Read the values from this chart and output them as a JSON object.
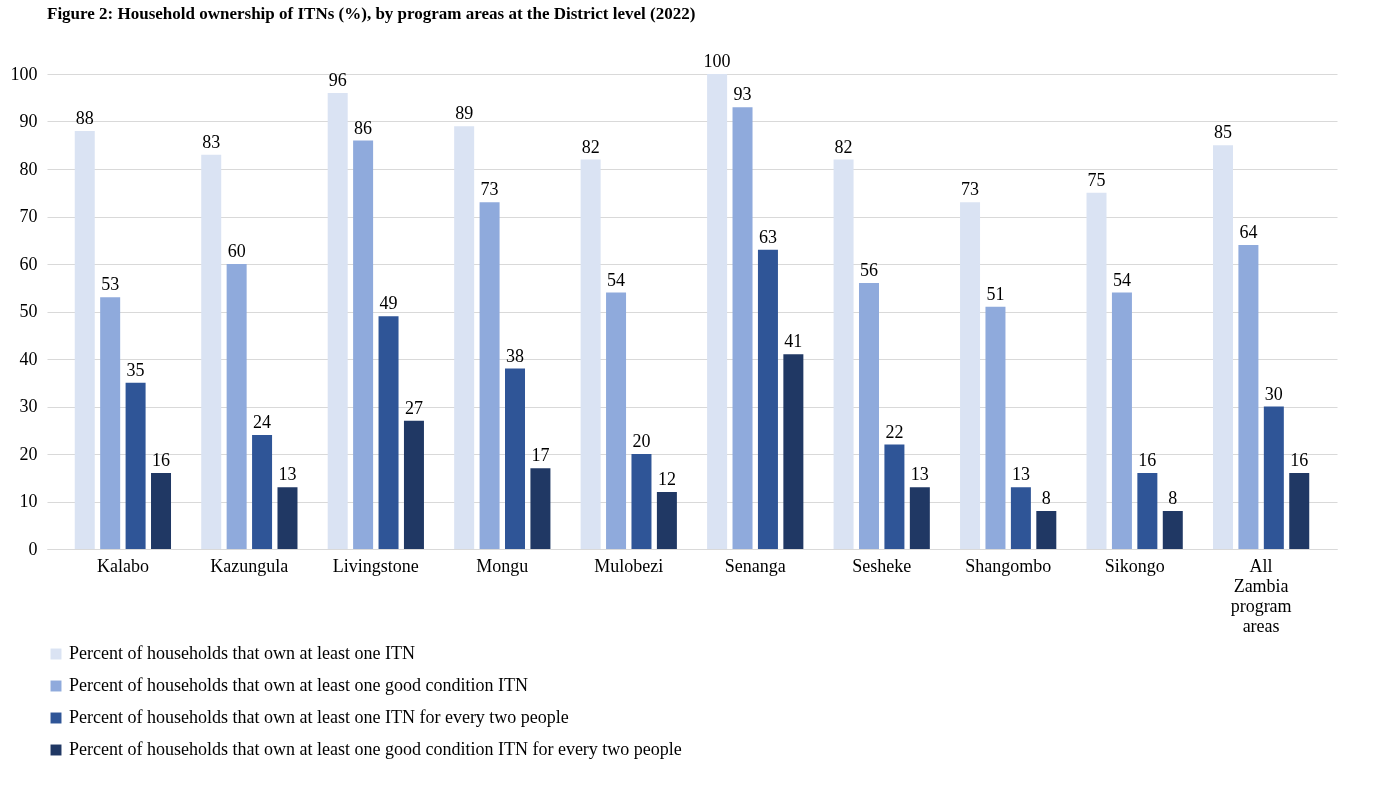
{
  "chart_data": {
    "type": "bar",
    "title": "Figure 2: Household ownership of ITNs (%), by program areas at the District level (2022)",
    "categories": [
      "Kalabo",
      "Kazungula",
      "Livingstone",
      "Mongu",
      "Mulobezi",
      "Senanga",
      "Sesheke",
      "Shangombo",
      "Sikongo",
      "All Zambia program areas"
    ],
    "series": [
      {
        "name": "Percent of households that own at least one ITN",
        "color": "#dae3f3",
        "values": [
          88,
          83,
          96,
          89,
          82,
          100,
          82,
          73,
          75,
          85
        ]
      },
      {
        "name": "Percent of households that own at least one good condition ITN",
        "color": "#8faadc",
        "values": [
          53,
          60,
          86,
          73,
          54,
          93,
          56,
          51,
          54,
          64
        ]
      },
      {
        "name": "Percent of households that own at least one ITN for every two people",
        "color": "#2f5597",
        "values": [
          35,
          24,
          49,
          38,
          20,
          63,
          22,
          13,
          16,
          30
        ]
      },
      {
        "name": "Percent of households that own at least one good condition ITN for every two people",
        "color": "#203864",
        "values": [
          16,
          13,
          27,
          17,
          12,
          41,
          13,
          8,
          8,
          16
        ]
      }
    ],
    "ylim": [
      0,
      100
    ],
    "yticks": [
      0,
      10,
      20,
      30,
      40,
      50,
      60,
      70,
      80,
      90,
      100
    ],
    "grid": "y",
    "legend": "bottom",
    "data_labels": true
  }
}
